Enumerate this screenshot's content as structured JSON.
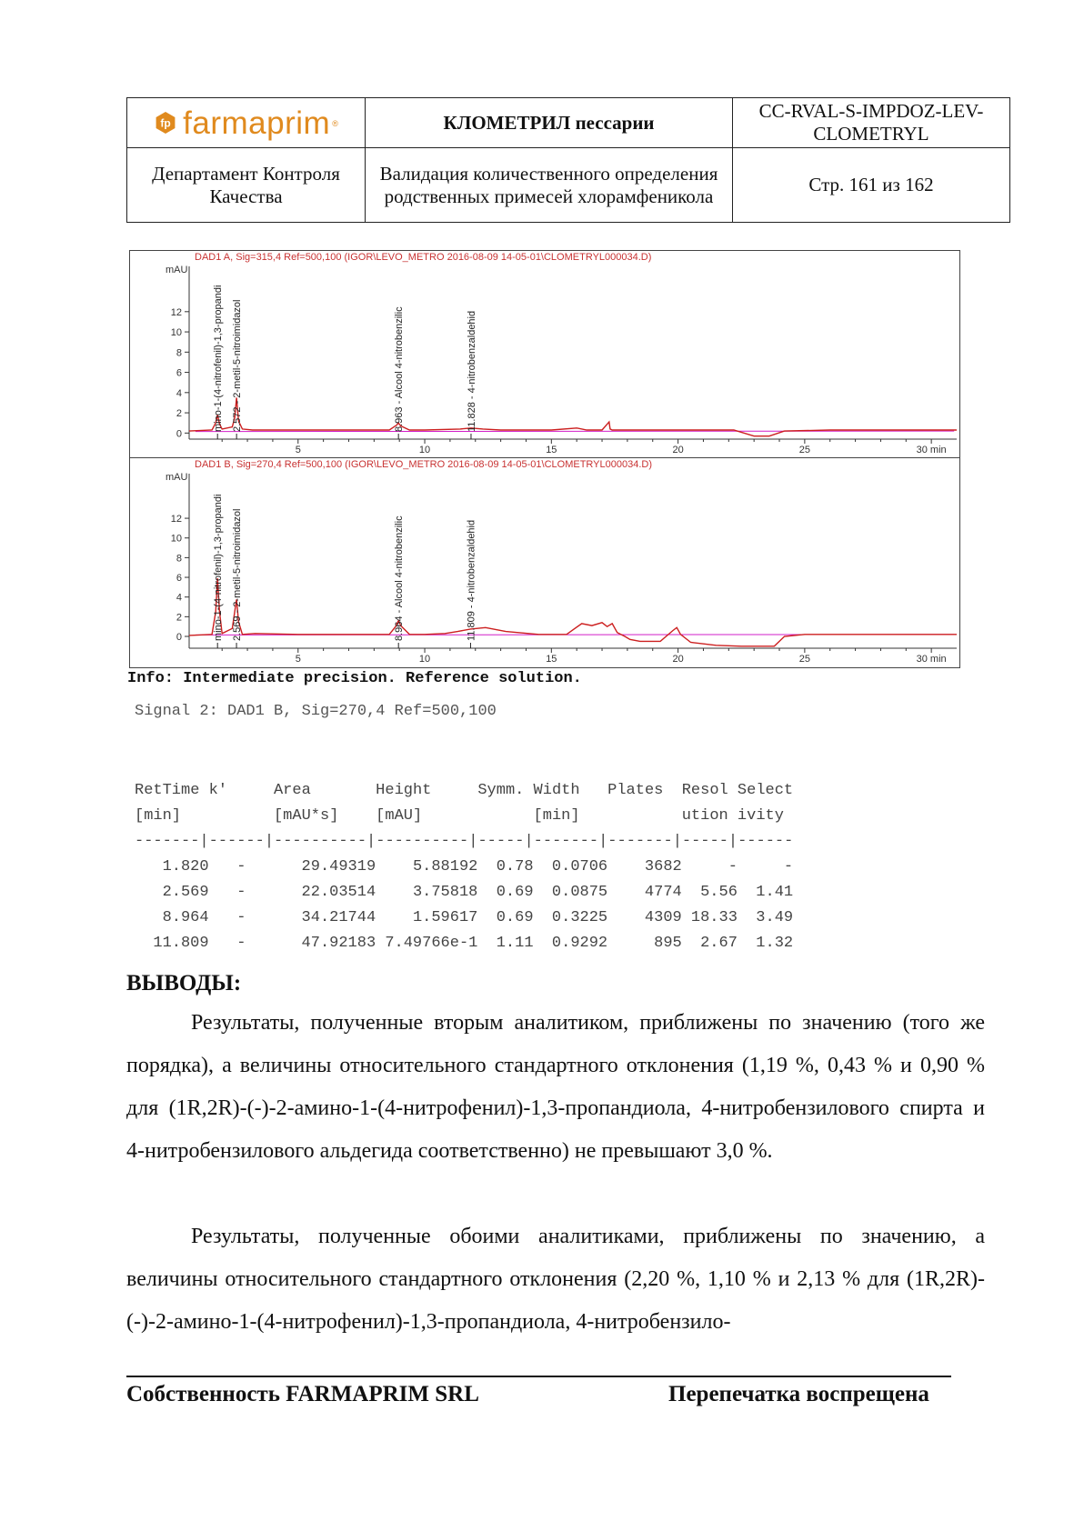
{
  "header": {
    "logo_text": "farmaprim",
    "logo_reg": "®",
    "doc_title": "КЛОМЕТРИЛ пессарии",
    "doc_code": "CC-RVAL-S-IMPDOZ-LEV-CLOMETRYL",
    "department": "Департамент Контроля Качества",
    "subject": "Валидация количественного определения родственных примесей хлорамфеникола",
    "page": "Стр. 161 из 162"
  },
  "chart_data": [
    {
      "type": "line",
      "title": "DAD1 A, Sig=315,4 Ref=500,100 (IGOR\\LEVO_METRO 2016-08-09 14-05-01\\CLOMETRYL000034.D)",
      "ylabel": "mAU",
      "yticks": [
        "0",
        "2",
        "4",
        "6",
        "8",
        "10",
        "12"
      ],
      "xticks": [
        "5",
        "10",
        "15",
        "20",
        "25",
        "30 min"
      ],
      "xlim": [
        0.7,
        31
      ],
      "ylim": [
        -0.6,
        14.5
      ],
      "peaks": [
        {
          "x": 1.82,
          "label": "mino-1-(4-nitrofenil)-1,3-propandi"
        },
        {
          "x": 2.572,
          "label": "2.572 - 2-metil-5-nitroimidazol"
        },
        {
          "x": 8.963,
          "label": "8.963 - Alcool 4-nitrobenzilic"
        },
        {
          "x": 11.828,
          "label": "11.828 - 4-nitrobenzaldehid"
        }
      ],
      "x": [
        0.7,
        1.6,
        1.75,
        1.82,
        1.9,
        2.0,
        2.4,
        2.5,
        2.57,
        2.65,
        2.8,
        3.2,
        5,
        7,
        8.6,
        8.9,
        8.96,
        9.05,
        9.4,
        10,
        11.4,
        11.83,
        12.3,
        13,
        15,
        16.0,
        16.4,
        17.0,
        17.28,
        17.32,
        17.4,
        18,
        20,
        22.2,
        23.0,
        23.6,
        24.2,
        26,
        28,
        31
      ],
      "y": [
        0.2,
        0.3,
        1.0,
        1.8,
        0.9,
        0.4,
        0.6,
        1.5,
        3.5,
        1.2,
        0.4,
        0.3,
        0.3,
        0.3,
        0.3,
        0.8,
        1.0,
        0.7,
        0.3,
        0.3,
        0.4,
        0.5,
        0.4,
        0.3,
        0.3,
        0.5,
        0.3,
        0.3,
        1.1,
        0.4,
        0.3,
        0.3,
        0.3,
        0.3,
        -0.3,
        -0.3,
        0.2,
        0.3,
        0.3,
        0.3
      ]
    },
    {
      "type": "line",
      "title": "DAD1 B, Sig=270,4 Ref=500,100 (IGOR\\LEVO_METRO 2016-08-09 14-05-01\\CLOMETRYL000034.D)",
      "ylabel": "mAU",
      "yticks": [
        "0",
        "2",
        "4",
        "6",
        "8",
        "10",
        "12"
      ],
      "xticks": [
        "5",
        "10",
        "15",
        "20",
        "25",
        "30 min"
      ],
      "xlim": [
        0.7,
        31
      ],
      "ylim": [
        -1.2,
        14.5
      ],
      "peaks": [
        {
          "x": 1.82,
          "label": "mino-1-(4-nitrofenil)-1,3-propandi"
        },
        {
          "x": 2.569,
          "label": "2.569 - 2-metil-5-nitroimidazol"
        },
        {
          "x": 8.964,
          "label": "8.964 - Alcool 4-nitrobenzilic"
        },
        {
          "x": 11.809,
          "label": "11.809 - 4-nitrobenzaldehid"
        }
      ],
      "x": [
        0.7,
        1.6,
        1.75,
        1.82,
        1.9,
        2.0,
        2.4,
        2.5,
        2.569,
        2.65,
        2.8,
        3.3,
        5,
        7,
        8.6,
        8.85,
        8.964,
        9.05,
        9.4,
        10,
        10.8,
        11.3,
        11.809,
        12.4,
        13.2,
        14.5,
        15.6,
        16.2,
        16.6,
        17.0,
        17.2,
        17.4,
        17.6,
        17.9,
        18.1,
        18.5,
        19.3,
        19.8,
        19.95,
        20.1,
        20.5,
        21.5,
        22.5,
        23.0,
        23.8,
        24.2,
        25,
        27,
        29,
        31
      ],
      "y": [
        0.1,
        0.2,
        2.5,
        5.9,
        2.5,
        0.3,
        0.8,
        2.5,
        3.76,
        1.5,
        0.2,
        0.3,
        0.2,
        0.2,
        0.2,
        1.0,
        1.6,
        1.1,
        0.2,
        0.2,
        0.3,
        0.5,
        0.75,
        0.9,
        0.5,
        0.2,
        0.2,
        1.3,
        1.1,
        1.4,
        1.0,
        1.3,
        0.4,
        0.0,
        -0.3,
        -0.5,
        -0.5,
        0.6,
        0.9,
        0.2,
        -0.6,
        -0.9,
        -1.0,
        -1.0,
        -1.0,
        0.0,
        0.2,
        0.2,
        0.2,
        0.2
      ]
    }
  ],
  "info_line": "Info: Intermediate precision. Reference solution.",
  "signal_line": "Signal 2: DAD1 B, Sig=270,4 Ref=500,100",
  "results": {
    "head1": [
      "RetTime",
      "k'",
      "Area",
      "Height",
      "Symm.",
      "Width",
      "Plates",
      "Resol",
      "Select"
    ],
    "head2": [
      "[min]",
      "",
      "[mAU*s]",
      "[mAU]",
      "",
      "[min]",
      "",
      "ution",
      "ivity"
    ],
    "separator": "-------|------|----------|----------|-----|-------|-------|-----|------",
    "rows": [
      [
        "1.820",
        "-",
        "29.49319",
        "5.88192",
        "0.78",
        "0.0706",
        "3682",
        "-",
        "-"
      ],
      [
        "2.569",
        "-",
        "22.03514",
        "3.75818",
        "0.69",
        "0.0875",
        "4774",
        "5.56",
        "1.41"
      ],
      [
        "8.964",
        "-",
        "34.21744",
        "1.59617",
        "0.69",
        "0.3225",
        "4309",
        "18.33",
        "3.49"
      ],
      [
        "11.809",
        "-",
        "47.92183",
        "7.49766e-1",
        "1.11",
        "0.9292",
        "895",
        "2.67",
        "1.32"
      ]
    ]
  },
  "conclusions": {
    "heading": "ВЫВОДЫ:",
    "p1": "Результаты, полученные вторым аналитиком, приближены по значению (того же порядка), а величины относительного стандартного отклонения (1,19 %, 0,43 % и 0,90 % для (1R,2R)-(-)-2-амино-1-(4-нитрофенил)-1,3-пропандиола, 4-нитробензилового спирта и 4-нитробензилового альдегида соответственно) не превышают 3,0 %.",
    "p2": "Результаты, полученные обоими аналитиками, приближены по значению, а величины относительного стандартного отклонения (2,20 %, 1,10 % и 2,13 % для (1R,2R)-(-)-2-амино-1-(4-нитрофенил)-1,3-пропандиола, 4-нитробензило-"
  },
  "footer": {
    "left": "Собственность FARMAPRIM SRL",
    "right": "Перепечатка воспрещена"
  },
  "colors": {
    "trace": "#cc1f1f",
    "baseline": "#d21ec8",
    "logo": "#e08a1e"
  }
}
